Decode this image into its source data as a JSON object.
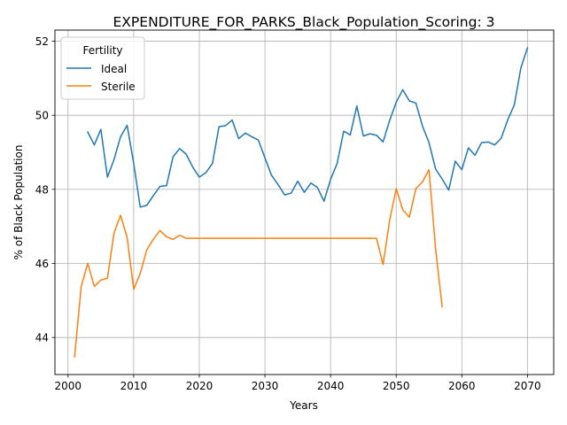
{
  "chart_data": {
    "type": "line",
    "title": "EXPENDITURE_FOR_PARKS_Black_Population_Scoring: 3",
    "xlabel": "Years",
    "ylabel": "% of Black Population",
    "xlim": [
      1998,
      2074
    ],
    "ylim": [
      43.0,
      52.3
    ],
    "xticks": [
      2000,
      2010,
      2020,
      2030,
      2040,
      2050,
      2060,
      2070
    ],
    "yticks": [
      44,
      46,
      48,
      50,
      52
    ],
    "grid": true,
    "legend": {
      "title": "Fertility",
      "placement": "top-left"
    },
    "series": [
      {
        "name": "Ideal",
        "color": "#1f77b4",
        "x": [
          2003,
          2004,
          2005,
          2006,
          2007,
          2008,
          2009,
          2010,
          2011,
          2012,
          2013,
          2014,
          2015,
          2016,
          2017,
          2018,
          2019,
          2020,
          2021,
          2022,
          2023,
          2024,
          2025,
          2026,
          2027,
          2028,
          2029,
          2030,
          2031,
          2032,
          2033,
          2034,
          2035,
          2036,
          2037,
          2038,
          2039,
          2040,
          2041,
          2042,
          2043,
          2044,
          2045,
          2046,
          2047,
          2048,
          2049,
          2050,
          2051,
          2052,
          2053,
          2054,
          2055,
          2056,
          2057,
          2058,
          2059,
          2060,
          2061,
          2062,
          2063,
          2064,
          2065,
          2066,
          2067,
          2068,
          2069,
          2070
        ],
        "y": [
          49.55,
          49.2,
          49.62,
          48.33,
          48.8,
          49.42,
          49.73,
          48.7,
          47.52,
          47.57,
          47.83,
          48.08,
          48.1,
          48.88,
          49.1,
          48.95,
          48.6,
          48.33,
          48.45,
          48.7,
          49.69,
          49.72,
          49.87,
          49.37,
          49.52,
          49.42,
          49.33,
          48.85,
          48.38,
          48.13,
          47.85,
          47.9,
          48.22,
          47.92,
          48.17,
          48.05,
          47.68,
          48.27,
          48.7,
          49.57,
          49.47,
          50.25,
          49.44,
          49.5,
          49.46,
          49.28,
          49.86,
          50.35,
          50.69,
          50.39,
          50.33,
          49.71,
          49.26,
          48.55,
          48.28,
          47.98,
          48.76,
          48.53,
          49.12,
          48.92,
          49.26,
          49.28,
          49.2,
          49.38,
          49.88,
          50.28,
          51.28,
          51.82
        ]
      },
      {
        "name": "Sterile",
        "color": "#ff7f0e",
        "x": [
          2001,
          2002,
          2003,
          2004,
          2005,
          2006,
          2007,
          2008,
          2009,
          2010,
          2011,
          2012,
          2013,
          2014,
          2015,
          2016,
          2017,
          2018,
          2019,
          2020,
          2021,
          2022,
          2023,
          2024,
          2025,
          2026,
          2027,
          2028,
          2029,
          2030,
          2031,
          2032,
          2033,
          2034,
          2035,
          2036,
          2037,
          2038,
          2039,
          2040,
          2041,
          2042,
          2043,
          2044,
          2045,
          2046,
          2047,
          2048,
          2049,
          2050,
          2051,
          2052,
          2053,
          2054,
          2055,
          2056,
          2057
        ],
        "y": [
          43.48,
          45.38,
          46.0,
          45.38,
          45.55,
          45.6,
          46.82,
          47.3,
          46.7,
          45.3,
          45.73,
          46.37,
          46.65,
          46.89,
          46.72,
          46.65,
          46.76,
          46.68,
          46.68,
          46.68,
          46.68,
          46.68,
          46.68,
          46.68,
          46.68,
          46.68,
          46.68,
          46.68,
          46.68,
          46.68,
          46.68,
          46.68,
          46.68,
          46.68,
          46.68,
          46.68,
          46.68,
          46.68,
          46.68,
          46.68,
          46.68,
          46.68,
          46.68,
          46.68,
          46.68,
          46.68,
          46.68,
          45.97,
          47.16,
          48.02,
          47.45,
          47.25,
          48.02,
          48.2,
          48.53,
          46.4,
          44.83
        ]
      }
    ]
  }
}
